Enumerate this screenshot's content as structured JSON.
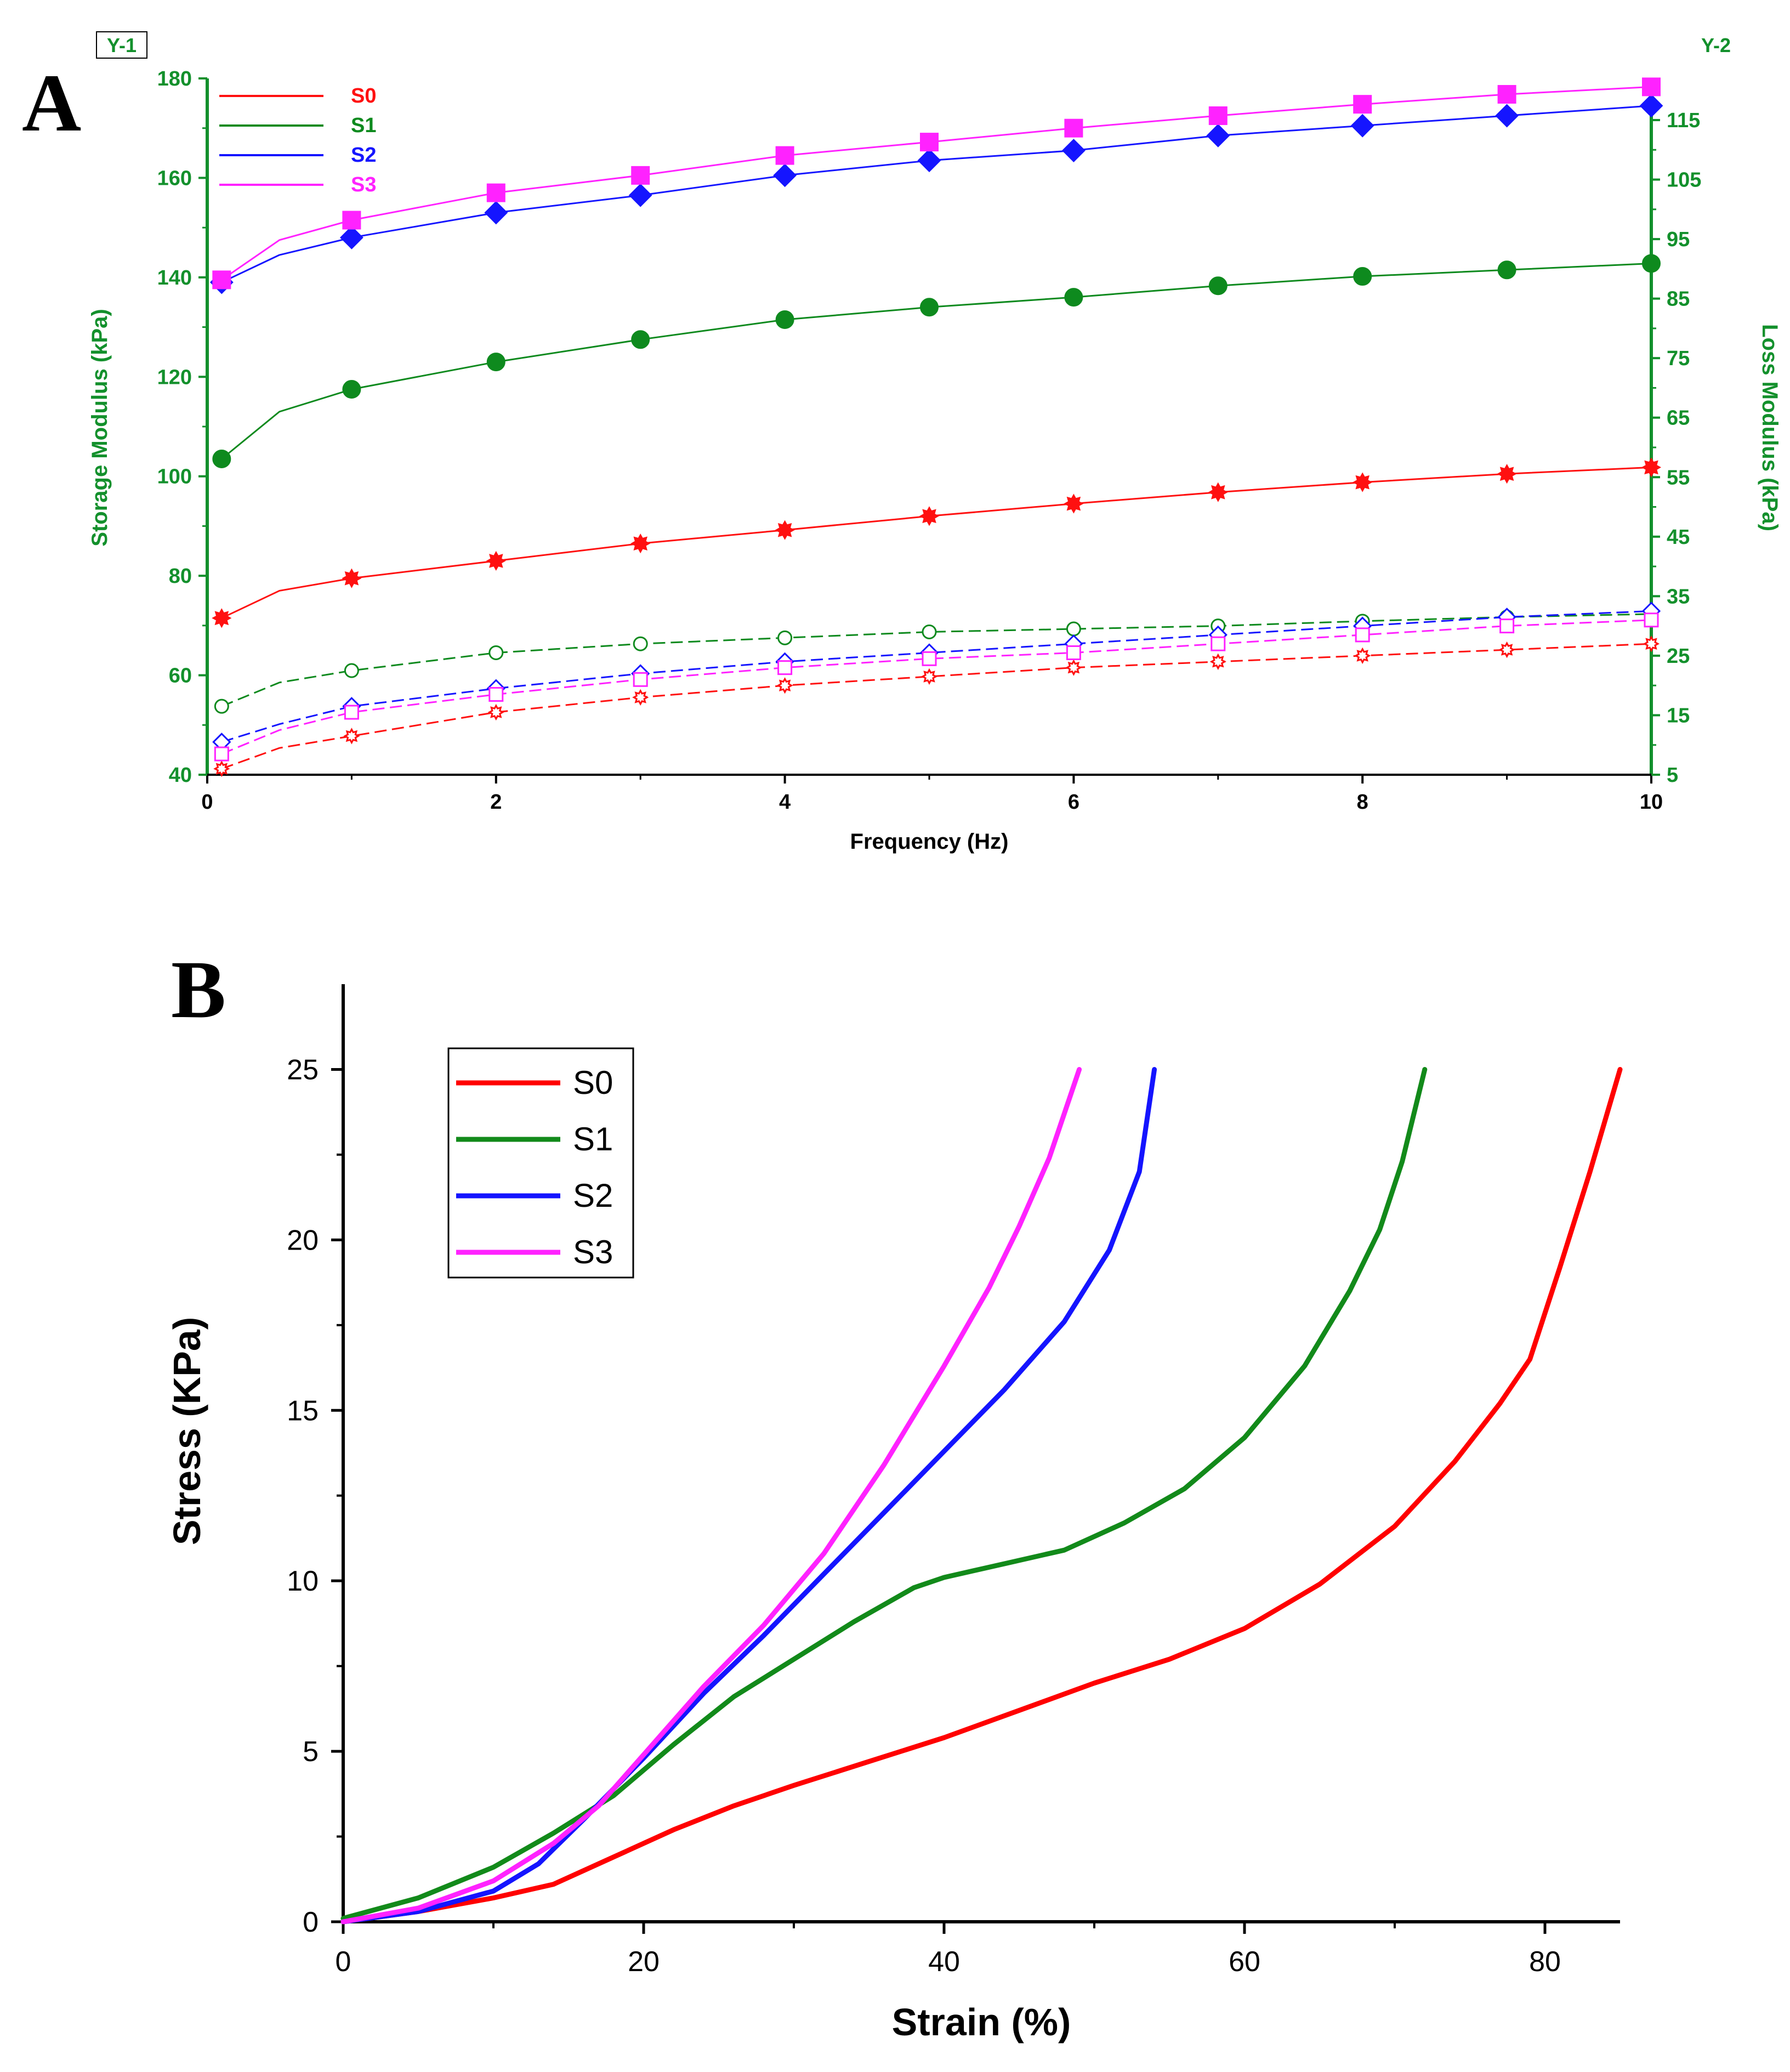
{
  "panel_a_label": "A",
  "panel_b_label": "B",
  "chart_data": [
    {
      "type": "line",
      "panel": "A",
      "xlabel": "Frequency (Hz)",
      "ylabel": "Storage Modulus (kPa)",
      "y2label": "Loss Modulus (kPa)",
      "y1_tag": "Y-1",
      "y2_tag": "Y-2",
      "xlim": [
        0,
        10
      ],
      "ylim": [
        40,
        180
      ],
      "y2lim": [
        5,
        122
      ],
      "x_ticks": [
        "0",
        "2",
        "4",
        "6",
        "8",
        "10"
      ],
      "y_ticks": [
        "40",
        "60",
        "80",
        "100",
        "120",
        "140",
        "160",
        "180"
      ],
      "y2_ticks": [
        "5",
        "15",
        "25",
        "35",
        "45",
        "55",
        "65",
        "75",
        "85",
        "95",
        "105",
        "115"
      ],
      "legend_position": "top-left",
      "colors": {
        "S0": "#ff1010",
        "S1": "#0e8a1e",
        "S2": "#1515ff",
        "S3": "#ff22ff",
        "axis": "#13902c"
      },
      "x": [
        0.1,
        0.5,
        1,
        2,
        3,
        4,
        5,
        6,
        7,
        8,
        9,
        10
      ],
      "series": [
        {
          "name": "S0",
          "marker": "star",
          "axis": "y1",
          "values": [
            71.5,
            77,
            79.5,
            83,
            86.5,
            89.2,
            92,
            94.5,
            96.8,
            98.8,
            100.5,
            101.8
          ]
        },
        {
          "name": "S1",
          "marker": "circle",
          "axis": "y1",
          "values": [
            103.5,
            113,
            117.5,
            123,
            127.5,
            131.5,
            134,
            136,
            138.3,
            140.2,
            141.5,
            142.8
          ]
        },
        {
          "name": "S2",
          "marker": "diamond",
          "axis": "y1",
          "values": [
            139,
            144.5,
            148,
            153,
            156.5,
            160.5,
            163.5,
            165.5,
            168.5,
            170.5,
            172.5,
            174.5
          ]
        },
        {
          "name": "S3",
          "marker": "square",
          "axis": "y1",
          "values": [
            139.5,
            147.5,
            151.5,
            157,
            160.5,
            164.5,
            167.2,
            170,
            172.5,
            174.8,
            176.8,
            178.3
          ]
        },
        {
          "name": "S0",
          "marker": "open-star",
          "axis": "y2",
          "dashed": true,
          "values": [
            6,
            9.5,
            11.5,
            15.5,
            18,
            20,
            21.5,
            23,
            24,
            25,
            26,
            27
          ]
        },
        {
          "name": "S1",
          "marker": "open-circle",
          "axis": "y2",
          "dashed": true,
          "values": [
            16.5,
            20.5,
            22.5,
            25.5,
            27,
            28,
            29,
            29.5,
            30,
            30.8,
            31.5,
            32
          ]
        },
        {
          "name": "S2",
          "marker": "open-diamond",
          "axis": "y2",
          "dashed": true,
          "values": [
            10.5,
            13.5,
            16.5,
            19.5,
            22,
            24,
            25.5,
            27,
            28.5,
            30,
            31.5,
            32.5
          ]
        },
        {
          "name": "S3",
          "marker": "open-square",
          "axis": "y2",
          "dashed": true,
          "values": [
            8.5,
            12.5,
            15.5,
            18.5,
            21,
            23,
            24.5,
            25.5,
            27,
            28.5,
            30,
            31
          ]
        }
      ]
    },
    {
      "type": "line",
      "panel": "B",
      "xlabel": "Strain (%)",
      "ylabel": "Stress (KPa)",
      "xlim": [
        0,
        85
      ],
      "ylim": [
        0,
        27.5
      ],
      "x_ticks": [
        "0",
        "20",
        "40",
        "60",
        "80"
      ],
      "y_ticks": [
        "0",
        "5",
        "10",
        "15",
        "20",
        "25"
      ],
      "legend_position": "top-left",
      "colors": {
        "S0": "#ff0000",
        "S1": "#128a1a",
        "S2": "#1414ff",
        "S3": "#ff22ff",
        "axis": "#000000"
      },
      "series": [
        {
          "name": "S0",
          "points": [
            [
              0,
              0
            ],
            [
              5,
              0.3
            ],
            [
              10,
              0.7
            ],
            [
              14,
              1.1
            ],
            [
              18,
              1.9
            ],
            [
              22,
              2.7
            ],
            [
              26,
              3.4
            ],
            [
              30,
              4
            ],
            [
              35,
              4.7
            ],
            [
              40,
              5.4
            ],
            [
              45,
              6.2
            ],
            [
              50,
              7
            ],
            [
              55,
              7.7
            ],
            [
              60,
              8.6
            ],
            [
              65,
              9.9
            ],
            [
              70,
              11.6
            ],
            [
              74,
              13.5
            ],
            [
              77,
              15.2
            ],
            [
              79,
              16.5
            ],
            [
              81,
              19.2
            ],
            [
              83,
              22
            ],
            [
              85,
              25
            ]
          ]
        },
        {
          "name": "S1",
          "points": [
            [
              0,
              0.1
            ],
            [
              5,
              0.7
            ],
            [
              10,
              1.6
            ],
            [
              14,
              2.6
            ],
            [
              18,
              3.7
            ],
            [
              22,
              5.2
            ],
            [
              26,
              6.6
            ],
            [
              30,
              7.7
            ],
            [
              34,
              8.8
            ],
            [
              38,
              9.8
            ],
            [
              40,
              10.1
            ],
            [
              44,
              10.5
            ],
            [
              48,
              10.9
            ],
            [
              52,
              11.7
            ],
            [
              56,
              12.7
            ],
            [
              60,
              14.2
            ],
            [
              64,
              16.3
            ],
            [
              67,
              18.5
            ],
            [
              69,
              20.3
            ],
            [
              70.5,
              22.3
            ],
            [
              72,
              25
            ]
          ]
        },
        {
          "name": "S2",
          "points": [
            [
              0,
              0
            ],
            [
              5,
              0.3
            ],
            [
              10,
              0.9
            ],
            [
              13,
              1.7
            ],
            [
              16,
              3
            ],
            [
              20,
              4.8
            ],
            [
              24,
              6.7
            ],
            [
              28,
              8.4
            ],
            [
              32,
              10.2
            ],
            [
              36,
              12
            ],
            [
              40,
              13.8
            ],
            [
              44,
              15.6
            ],
            [
              48,
              17.6
            ],
            [
              51,
              19.7
            ],
            [
              53,
              22
            ],
            [
              54,
              25
            ]
          ]
        },
        {
          "name": "S3",
          "points": [
            [
              0,
              0
            ],
            [
              5,
              0.4
            ],
            [
              10,
              1.2
            ],
            [
              14,
              2.3
            ],
            [
              17,
              3.4
            ],
            [
              20,
              4.9
            ],
            [
              24,
              6.9
            ],
            [
              28,
              8.7
            ],
            [
              32,
              10.8
            ],
            [
              36,
              13.4
            ],
            [
              40,
              16.3
            ],
            [
              43,
              18.6
            ],
            [
              45,
              20.4
            ],
            [
              47,
              22.4
            ],
            [
              49,
              25
            ]
          ]
        }
      ]
    }
  ]
}
